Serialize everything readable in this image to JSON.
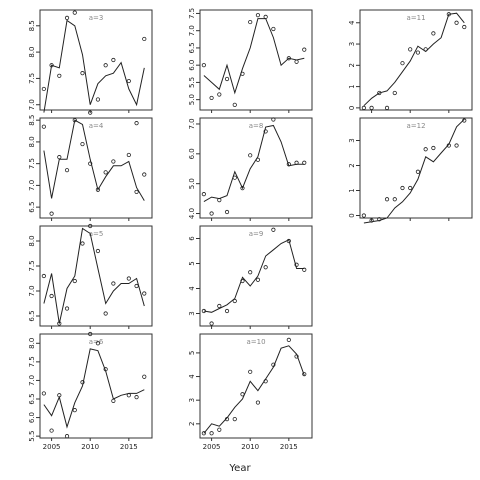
{
  "xlabel": "Year",
  "chart_data": [
    {
      "type": "scatter",
      "panel_label": "a=3",
      "xlim": [
        2003.5,
        2018
      ],
      "ylim": [
        6.9,
        8.8
      ],
      "yticks": [
        "7.0",
        "7.5",
        "8.0",
        "8.5"
      ],
      "xticks": [],
      "points": {
        "x": [
          2004,
          2005,
          2006,
          2007,
          2008,
          2009,
          2010,
          2011,
          2012,
          2013,
          2015,
          2016,
          2017
        ],
        "y": [
          7.3,
          7.75,
          7.55,
          8.65,
          8.75,
          7.6,
          6.85,
          7.1,
          7.75,
          7.85,
          7.45,
          6.65,
          8.25
        ]
      },
      "line": {
        "x": [
          2004,
          2005,
          2006,
          2007,
          2008,
          2009,
          2010,
          2011,
          2012,
          2013,
          2014,
          2015,
          2016,
          2017
        ],
        "y": [
          6.85,
          7.75,
          7.7,
          8.6,
          8.5,
          7.95,
          7.0,
          7.4,
          7.55,
          7.6,
          7.8,
          7.3,
          7.0,
          7.7
        ]
      }
    },
    {
      "type": "scatter",
      "panel_label": "",
      "xlim": [
        2003.5,
        2018
      ],
      "ylim": [
        4.7,
        7.6
      ],
      "yticks": [
        "5.0",
        "5.5",
        "6.0",
        "6.5",
        "7.0",
        "7.5"
      ],
      "xticks": [],
      "points": {
        "x": [
          2004,
          2005,
          2006,
          2007,
          2008,
          2009,
          2010,
          2011,
          2012,
          2013,
          2015,
          2016,
          2017
        ],
        "y": [
          6.0,
          5.05,
          5.15,
          5.6,
          4.85,
          5.75,
          7.25,
          7.45,
          7.4,
          7.05,
          6.2,
          6.1,
          6.45
        ]
      },
      "line": {
        "x": [
          2004,
          2005,
          2006,
          2007,
          2008,
          2009,
          2010,
          2011,
          2012,
          2013,
          2014,
          2015,
          2016,
          2017
        ],
        "y": [
          5.7,
          5.5,
          5.3,
          6.0,
          5.2,
          5.9,
          6.5,
          7.35,
          7.35,
          6.8,
          6.0,
          6.2,
          6.15,
          6.2
        ]
      }
    },
    {
      "type": "scatter",
      "panel_label": "a=11",
      "xlim": [
        2003.5,
        2018
      ],
      "ylim": [
        -0.1,
        4.6
      ],
      "yticks": [
        "0",
        "1",
        "2",
        "3",
        "4"
      ],
      "xticks": [],
      "points": {
        "x": [
          2004,
          2005,
          2006,
          2007,
          2008,
          2009,
          2010,
          2011,
          2012,
          2013,
          2015,
          2016,
          2017
        ],
        "y": [
          0.0,
          0.0,
          0.7,
          0.0,
          0.7,
          2.1,
          2.75,
          2.6,
          2.75,
          3.5,
          4.4,
          4.0,
          3.8
        ]
      },
      "line": {
        "x": [
          2004,
          2005,
          2006,
          2007,
          2008,
          2009,
          2010,
          2011,
          2012,
          2013,
          2014,
          2015,
          2016,
          2017
        ],
        "y": [
          0.1,
          0.45,
          0.7,
          0.8,
          1.2,
          1.7,
          2.2,
          2.9,
          2.65,
          3.0,
          3.3,
          4.4,
          4.45,
          4.0
        ]
      }
    },
    {
      "type": "scatter",
      "panel_label": "a=4",
      "xlim": [
        2003.5,
        2018
      ],
      "ylim": [
        6.25,
        8.55
      ],
      "yticks": [
        "6.5",
        "7.0",
        "7.5",
        "8.0",
        "8.5"
      ],
      "xticks": [],
      "points": {
        "x": [
          2004,
          2005,
          2006,
          2007,
          2008,
          2009,
          2010,
          2011,
          2012,
          2013,
          2015,
          2016,
          2017
        ],
        "y": [
          8.35,
          6.35,
          7.65,
          7.35,
          8.5,
          7.95,
          7.5,
          6.9,
          7.3,
          7.55,
          7.7,
          6.85,
          7.25
        ]
      },
      "line": {
        "x": [
          2004,
          2005,
          2006,
          2007,
          2008,
          2009,
          2010,
          2011,
          2012,
          2013,
          2014,
          2015,
          2016,
          2017
        ],
        "y": [
          7.8,
          6.7,
          7.6,
          7.6,
          8.5,
          8.4,
          7.6,
          6.9,
          7.2,
          7.45,
          7.45,
          7.55,
          6.95,
          6.65
        ]
      }
    },
    {
      "type": "scatter",
      "panel_label": "a=8",
      "xlim": [
        2003.5,
        2018
      ],
      "ylim": [
        3.85,
        7.2
      ],
      "yticks": [
        "4.0",
        "5.0",
        "6.0",
        "7.0"
      ],
      "xticks": [],
      "points": {
        "x": [
          2004,
          2005,
          2006,
          2007,
          2008,
          2009,
          2010,
          2011,
          2012,
          2013,
          2015,
          2016,
          2017
        ],
        "y": [
          4.65,
          4.0,
          4.45,
          4.05,
          5.2,
          4.85,
          5.95,
          5.8,
          6.75,
          7.15,
          5.65,
          5.7,
          5.7
        ]
      },
      "line": {
        "x": [
          2004,
          2005,
          2006,
          2007,
          2008,
          2009,
          2010,
          2011,
          2012,
          2013,
          2014,
          2015,
          2016,
          2017
        ],
        "y": [
          4.4,
          4.55,
          4.5,
          4.6,
          5.4,
          4.85,
          5.5,
          5.9,
          6.9,
          6.95,
          6.4,
          5.6,
          5.65,
          5.65
        ]
      }
    },
    {
      "type": "scatter",
      "panel_label": "a=12",
      "xlim": [
        2003.5,
        2018
      ],
      "ylim": [
        -0.1,
        3.9
      ],
      "yticks": [
        "0",
        "1",
        "2",
        "3"
      ],
      "xticks": [],
      "points": {
        "x": [
          2004,
          2005,
          2006,
          2007,
          2008,
          2009,
          2010,
          2011,
          2012,
          2013,
          2015,
          2016,
          2017
        ],
        "y": [
          0.0,
          -0.2,
          -0.15,
          0.65,
          0.65,
          1.1,
          1.1,
          1.75,
          2.65,
          2.7,
          2.8,
          2.8,
          3.8
        ]
      },
      "line": {
        "x": [
          2004,
          2005,
          2006,
          2007,
          2008,
          2009,
          2010,
          2011,
          2012,
          2013,
          2014,
          2015,
          2016,
          2017
        ],
        "y": [
          -0.3,
          -0.25,
          -0.2,
          -0.1,
          0.3,
          0.55,
          0.9,
          1.45,
          2.35,
          2.15,
          2.5,
          2.85,
          3.55,
          3.85
        ]
      }
    },
    {
      "type": "scatter",
      "panel_label": "a=5",
      "xlim": [
        2003.5,
        2018
      ],
      "ylim": [
        6.3,
        8.3
      ],
      "yticks": [
        "6.5",
        "7.0",
        "7.5",
        "8.0"
      ],
      "xticks": [],
      "points": {
        "x": [
          2004,
          2005,
          2006,
          2007,
          2008,
          2009,
          2010,
          2011,
          2012,
          2013,
          2015,
          2016,
          2017
        ],
        "y": [
          7.3,
          6.9,
          6.35,
          6.65,
          7.2,
          7.95,
          8.3,
          7.8,
          6.55,
          7.15,
          7.25,
          7.1,
          6.95
        ]
      },
      "line": {
        "x": [
          2004,
          2005,
          2006,
          2007,
          2008,
          2009,
          2010,
          2011,
          2012,
          2013,
          2014,
          2015,
          2016,
          2017
        ],
        "y": [
          6.75,
          7.35,
          6.35,
          7.05,
          7.3,
          8.25,
          8.15,
          7.45,
          6.75,
          7.0,
          7.15,
          7.15,
          7.25,
          6.7
        ]
      }
    },
    {
      "type": "scatter",
      "panel_label": "a=9",
      "xlim": [
        2003.5,
        2018
      ],
      "ylim": [
        2.5,
        6.5
      ],
      "yticks": [
        "3",
        "4",
        "5",
        "6"
      ],
      "xticks": [],
      "points": {
        "x": [
          2004,
          2005,
          2006,
          2007,
          2008,
          2009,
          2010,
          2011,
          2012,
          2013,
          2015,
          2016,
          2017
        ],
        "y": [
          3.1,
          2.6,
          3.3,
          3.1,
          3.5,
          4.3,
          4.65,
          4.35,
          4.85,
          6.35,
          5.9,
          4.95,
          4.75
        ]
      },
      "line": {
        "x": [
          2004,
          2005,
          2006,
          2007,
          2008,
          2009,
          2010,
          2011,
          2012,
          2013,
          2014,
          2015,
          2016,
          2017
        ],
        "y": [
          3.1,
          3.05,
          3.2,
          3.35,
          3.6,
          4.45,
          4.1,
          4.5,
          5.3,
          5.55,
          5.8,
          5.95,
          4.8,
          4.8
        ]
      }
    },
    {
      "type": "scatter",
      "panel_label": "a=6",
      "xlim": [
        2003.5,
        2018
      ],
      "ylim": [
        5.45,
        8.25
      ],
      "yticks": [
        "5.5",
        "6.0",
        "6.5",
        "7.0",
        "7.5",
        "8.0"
      ],
      "xticks": [
        "2005",
        "2010",
        "2015"
      ],
      "points": {
        "x": [
          2004,
          2005,
          2006,
          2007,
          2008,
          2009,
          2010,
          2011,
          2012,
          2013,
          2015,
          2016,
          2017
        ],
        "y": [
          6.65,
          5.65,
          6.6,
          5.5,
          6.2,
          6.95,
          8.25,
          8.0,
          7.3,
          6.45,
          6.6,
          6.55,
          7.1
        ]
      },
      "line": {
        "x": [
          2004,
          2005,
          2006,
          2007,
          2008,
          2009,
          2010,
          2011,
          2012,
          2013,
          2014,
          2015,
          2016,
          2017
        ],
        "y": [
          6.35,
          6.05,
          6.55,
          5.75,
          6.4,
          6.85,
          7.85,
          7.8,
          7.25,
          6.5,
          6.6,
          6.65,
          6.65,
          6.75
        ]
      }
    },
    {
      "type": "scatter",
      "panel_label": "a=10",
      "xlim": [
        2003.5,
        2018
      ],
      "ylim": [
        1.4,
        5.8
      ],
      "yticks": [
        "2",
        "3",
        "4",
        "5"
      ],
      "xticks": [
        "2005",
        "2010",
        "2015"
      ],
      "points": {
        "x": [
          2004,
          2005,
          2006,
          2007,
          2008,
          2009,
          2010,
          2011,
          2012,
          2013,
          2015,
          2016,
          2017
        ],
        "y": [
          1.6,
          1.6,
          1.75,
          2.2,
          2.2,
          3.25,
          4.2,
          2.9,
          3.8,
          4.5,
          5.55,
          4.85,
          4.1
        ]
      },
      "line": {
        "x": [
          2004,
          2005,
          2006,
          2007,
          2008,
          2009,
          2010,
          2011,
          2012,
          2013,
          2014,
          2015,
          2016,
          2017
        ],
        "y": [
          1.6,
          2.0,
          1.9,
          2.25,
          2.7,
          3.05,
          3.8,
          3.4,
          3.9,
          4.4,
          5.2,
          5.3,
          4.95,
          4.05
        ]
      }
    }
  ]
}
